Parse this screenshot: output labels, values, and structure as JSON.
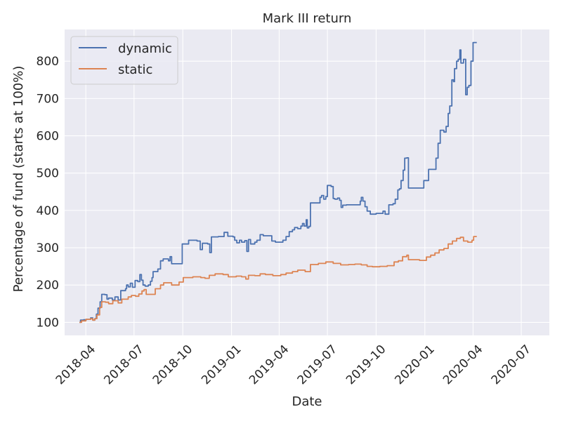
{
  "chart_data": {
    "type": "line",
    "title": "Mark III return",
    "xlabel": "Date",
    "ylabel": "Percentage of fund (starts at 100%)",
    "xlim": [
      "2018-02-20",
      "2020-08-23"
    ],
    "ylim": [
      65,
      885
    ],
    "x_ticks": [
      "2018-04",
      "2018-07",
      "2018-10",
      "2019-01",
      "2019-04",
      "2019-07",
      "2019-10",
      "2020-01",
      "2020-04",
      "2020-07"
    ],
    "y_ticks": [
      100,
      200,
      300,
      400,
      500,
      600,
      700,
      800
    ],
    "grid": true,
    "legend_position": "top-left",
    "colors": {
      "background": "#EAEAF2",
      "grid": "#FFFFFF",
      "dynamic": "#4C72B0",
      "static": "#DD8452"
    },
    "series": [
      {
        "name": "dynamic",
        "points": [
          [
            "2018-03-20",
            100
          ],
          [
            "2018-03-22",
            106
          ],
          [
            "2018-03-28",
            107
          ],
          [
            "2018-04-02",
            108
          ],
          [
            "2018-04-10",
            112
          ],
          [
            "2018-04-14",
            106
          ],
          [
            "2018-04-18",
            110
          ],
          [
            "2018-04-21",
            122
          ],
          [
            "2018-04-24",
            138
          ],
          [
            "2018-04-28",
            155
          ],
          [
            "2018-05-01",
            175
          ],
          [
            "2018-05-07",
            174
          ],
          [
            "2018-05-11",
            162
          ],
          [
            "2018-05-14",
            165
          ],
          [
            "2018-05-21",
            160
          ],
          [
            "2018-05-26",
            168
          ],
          [
            "2018-06-01",
            160
          ],
          [
            "2018-06-06",
            185
          ],
          [
            "2018-06-15",
            190
          ],
          [
            "2018-06-17",
            200
          ],
          [
            "2018-06-20",
            195
          ],
          [
            "2018-06-24",
            205
          ],
          [
            "2018-06-28",
            194
          ],
          [
            "2018-07-03",
            212
          ],
          [
            "2018-07-08",
            209
          ],
          [
            "2018-07-12",
            228
          ],
          [
            "2018-07-15",
            213
          ],
          [
            "2018-07-18",
            200
          ],
          [
            "2018-07-22",
            197
          ],
          [
            "2018-07-28",
            200
          ],
          [
            "2018-08-01",
            210
          ],
          [
            "2018-08-04",
            220
          ],
          [
            "2018-08-06",
            236
          ],
          [
            "2018-08-15",
            243
          ],
          [
            "2018-08-20",
            265
          ],
          [
            "2018-08-25",
            270
          ],
          [
            "2018-09-04",
            265
          ],
          [
            "2018-09-07",
            276
          ],
          [
            "2018-09-10",
            257
          ],
          [
            "2018-09-20",
            257
          ],
          [
            "2018-09-30",
            310
          ],
          [
            "2018-10-12",
            320
          ],
          [
            "2018-10-28",
            318
          ],
          [
            "2018-11-03",
            295
          ],
          [
            "2018-11-07",
            312
          ],
          [
            "2018-11-17",
            310
          ],
          [
            "2018-11-21",
            287
          ],
          [
            "2018-11-24",
            329
          ],
          [
            "2018-12-07",
            330
          ],
          [
            "2018-12-18",
            341
          ],
          [
            "2018-12-25",
            331
          ],
          [
            "2019-01-04",
            329
          ],
          [
            "2019-01-07",
            320
          ],
          [
            "2019-01-11",
            313
          ],
          [
            "2019-01-16",
            320
          ],
          [
            "2019-01-20",
            315
          ],
          [
            "2019-01-26",
            319
          ],
          [
            "2019-01-30",
            290
          ],
          [
            "2019-02-02",
            322
          ],
          [
            "2019-02-06",
            310
          ],
          [
            "2019-02-14",
            315
          ],
          [
            "2019-02-18",
            320
          ],
          [
            "2019-02-24",
            335
          ],
          [
            "2019-03-02",
            332
          ],
          [
            "2019-03-07",
            332
          ],
          [
            "2019-03-18",
            318
          ],
          [
            "2019-03-25",
            315
          ],
          [
            "2019-04-06",
            315
          ],
          [
            "2019-04-08",
            320
          ],
          [
            "2019-04-14",
            330
          ],
          [
            "2019-04-20",
            343
          ],
          [
            "2019-04-26",
            348
          ],
          [
            "2019-04-30",
            354
          ],
          [
            "2019-05-06",
            351
          ],
          [
            "2019-05-12",
            358
          ],
          [
            "2019-05-15",
            365
          ],
          [
            "2019-05-18",
            358
          ],
          [
            "2019-05-22",
            375
          ],
          [
            "2019-05-24",
            353
          ],
          [
            "2019-05-27",
            357
          ],
          [
            "2019-05-30",
            420
          ],
          [
            "2019-06-08",
            420
          ],
          [
            "2019-06-17",
            435
          ],
          [
            "2019-06-20",
            440
          ],
          [
            "2019-06-24",
            430
          ],
          [
            "2019-06-28",
            437
          ],
          [
            "2019-07-01",
            467
          ],
          [
            "2019-07-08",
            464
          ],
          [
            "2019-07-12",
            432
          ],
          [
            "2019-07-15",
            430
          ],
          [
            "2019-07-20",
            433
          ],
          [
            "2019-07-24",
            427
          ],
          [
            "2019-07-27",
            408
          ],
          [
            "2019-07-30",
            414
          ],
          [
            "2019-08-06",
            415
          ],
          [
            "2019-08-20",
            415
          ],
          [
            "2019-09-01",
            425
          ],
          [
            "2019-09-03",
            435
          ],
          [
            "2019-09-06",
            425
          ],
          [
            "2019-09-10",
            410
          ],
          [
            "2019-09-14",
            398
          ],
          [
            "2019-09-20",
            390
          ],
          [
            "2019-10-01",
            392
          ],
          [
            "2019-10-14",
            398
          ],
          [
            "2019-10-18",
            390
          ],
          [
            "2019-10-25",
            415
          ],
          [
            "2019-11-02",
            418
          ],
          [
            "2019-11-06",
            430
          ],
          [
            "2019-11-11",
            455
          ],
          [
            "2019-11-14",
            458
          ],
          [
            "2019-11-17",
            480
          ],
          [
            "2019-11-21",
            508
          ],
          [
            "2019-11-24",
            540
          ],
          [
            "2019-11-28",
            541
          ],
          [
            "2019-12-01",
            460
          ],
          [
            "2019-12-20",
            460
          ],
          [
            "2019-12-30",
            480
          ],
          [
            "2020-01-03",
            480
          ],
          [
            "2020-01-08",
            510
          ],
          [
            "2020-01-13",
            510
          ],
          [
            "2020-01-22",
            540
          ],
          [
            "2020-01-26",
            580
          ],
          [
            "2020-01-30",
            615
          ],
          [
            "2020-02-06",
            610
          ],
          [
            "2020-02-10",
            625
          ],
          [
            "2020-02-14",
            660
          ],
          [
            "2020-02-17",
            680
          ],
          [
            "2020-02-21",
            750
          ],
          [
            "2020-02-24",
            745
          ],
          [
            "2020-02-26",
            780
          ],
          [
            "2020-03-01",
            800
          ],
          [
            "2020-03-04",
            805
          ],
          [
            "2020-03-07",
            830
          ],
          [
            "2020-03-09",
            795
          ],
          [
            "2020-03-14",
            805
          ],
          [
            "2020-03-18",
            710
          ],
          [
            "2020-03-21",
            730
          ],
          [
            "2020-03-24",
            735
          ],
          [
            "2020-03-28",
            800
          ],
          [
            "2020-04-01",
            850
          ],
          [
            "2020-04-08",
            850
          ]
        ]
      },
      {
        "name": "static",
        "points": [
          [
            "2018-03-20",
            100
          ],
          [
            "2018-03-24",
            104
          ],
          [
            "2018-04-01",
            108
          ],
          [
            "2018-04-10",
            110
          ],
          [
            "2018-04-14",
            106
          ],
          [
            "2018-04-18",
            110
          ],
          [
            "2018-04-22",
            120
          ],
          [
            "2018-04-27",
            140
          ],
          [
            "2018-05-01",
            155
          ],
          [
            "2018-05-08",
            154
          ],
          [
            "2018-05-14",
            150
          ],
          [
            "2018-05-22",
            158
          ],
          [
            "2018-06-01",
            152
          ],
          [
            "2018-06-08",
            162
          ],
          [
            "2018-06-20",
            168
          ],
          [
            "2018-06-26",
            172
          ],
          [
            "2018-07-04",
            170
          ],
          [
            "2018-07-10",
            176
          ],
          [
            "2018-07-16",
            184
          ],
          [
            "2018-07-20",
            188
          ],
          [
            "2018-07-24",
            175
          ],
          [
            "2018-08-02",
            175
          ],
          [
            "2018-08-10",
            190
          ],
          [
            "2018-08-20",
            200
          ],
          [
            "2018-08-26",
            206
          ],
          [
            "2018-09-10",
            200
          ],
          [
            "2018-09-24",
            208
          ],
          [
            "2018-10-02",
            220
          ],
          [
            "2018-10-20",
            222
          ],
          [
            "2018-11-04",
            220
          ],
          [
            "2018-11-12",
            218
          ],
          [
            "2018-11-20",
            226
          ],
          [
            "2018-12-01",
            230
          ],
          [
            "2018-12-16",
            228
          ],
          [
            "2018-12-26",
            222
          ],
          [
            "2019-01-10",
            224
          ],
          [
            "2019-01-20",
            222
          ],
          [
            "2019-01-28",
            216
          ],
          [
            "2019-02-02",
            226
          ],
          [
            "2019-02-14",
            225
          ],
          [
            "2019-02-24",
            230
          ],
          [
            "2019-03-06",
            228
          ],
          [
            "2019-03-20",
            225
          ],
          [
            "2019-04-04",
            228
          ],
          [
            "2019-04-14",
            232
          ],
          [
            "2019-04-26",
            236
          ],
          [
            "2019-05-06",
            240
          ],
          [
            "2019-05-20",
            236
          ],
          [
            "2019-05-30",
            255
          ],
          [
            "2019-06-14",
            258
          ],
          [
            "2019-06-28",
            262
          ],
          [
            "2019-07-12",
            258
          ],
          [
            "2019-07-26",
            254
          ],
          [
            "2019-08-10",
            255
          ],
          [
            "2019-08-22",
            256
          ],
          [
            "2019-09-03",
            254
          ],
          [
            "2019-09-14",
            250
          ],
          [
            "2019-09-24",
            249
          ],
          [
            "2019-10-08",
            250
          ],
          [
            "2019-10-22",
            252
          ],
          [
            "2019-11-04",
            262
          ],
          [
            "2019-11-12",
            265
          ],
          [
            "2019-11-20",
            276
          ],
          [
            "2019-11-28",
            280
          ],
          [
            "2019-12-01",
            268
          ],
          [
            "2019-12-22",
            266
          ],
          [
            "2020-01-04",
            275
          ],
          [
            "2020-01-12",
            280
          ],
          [
            "2020-01-20",
            286
          ],
          [
            "2020-01-28",
            294
          ],
          [
            "2020-02-06",
            298
          ],
          [
            "2020-02-14",
            310
          ],
          [
            "2020-02-22",
            318
          ],
          [
            "2020-03-01",
            325
          ],
          [
            "2020-03-08",
            328
          ],
          [
            "2020-03-14",
            318
          ],
          [
            "2020-03-22",
            315
          ],
          [
            "2020-03-30",
            320
          ],
          [
            "2020-04-02",
            330
          ],
          [
            "2020-04-08",
            330
          ]
        ]
      }
    ]
  }
}
